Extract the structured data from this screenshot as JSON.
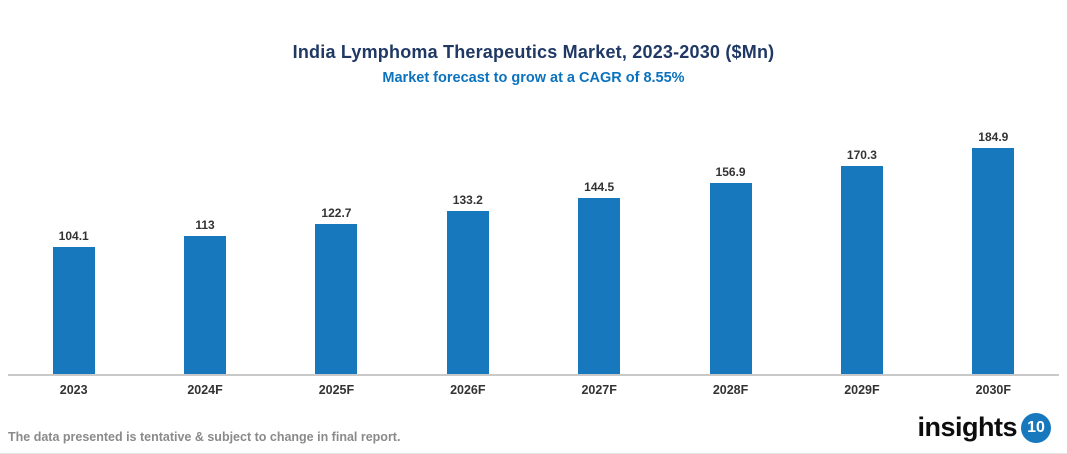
{
  "header": {
    "title": "India Lymphoma Therapeutics Market, 2023-2030 ($Mn)",
    "subtitle": "Market forecast to grow at a CAGR of 8.55%"
  },
  "chart_data": {
    "type": "bar",
    "categories": [
      "2023",
      "2024F",
      "2025F",
      "2026F",
      "2027F",
      "2028F",
      "2029F",
      "2030F"
    ],
    "values": [
      104.1,
      113,
      122.7,
      133.2,
      144.5,
      156.9,
      170.3,
      184.9
    ],
    "value_labels": [
      "104.1",
      "113",
      "122.7",
      "133.2",
      "144.5",
      "156.9",
      "170.3",
      "184.9"
    ],
    "title": "India Lymphoma Therapeutics Market, 2023-2030 ($Mn)",
    "subtitle": "Market forecast to grow at a CAGR of 8.55%",
    "xlabel": "",
    "ylabel": "",
    "ylim": [
      0,
      200
    ],
    "grid": false,
    "legend": "none",
    "bar_color": "#1878BE"
  },
  "footer": {
    "disclaimer": "The data presented is tentative & subject to change in final report.",
    "logo_text": "insights",
    "logo_badge": "10"
  },
  "colors": {
    "title": "#1F3864",
    "subtitle": "#0B72BE",
    "bar": "#1878BE",
    "axis_line": "#C9C9C9",
    "labels": "#333333",
    "disclaimer": "#8A8A8A"
  }
}
